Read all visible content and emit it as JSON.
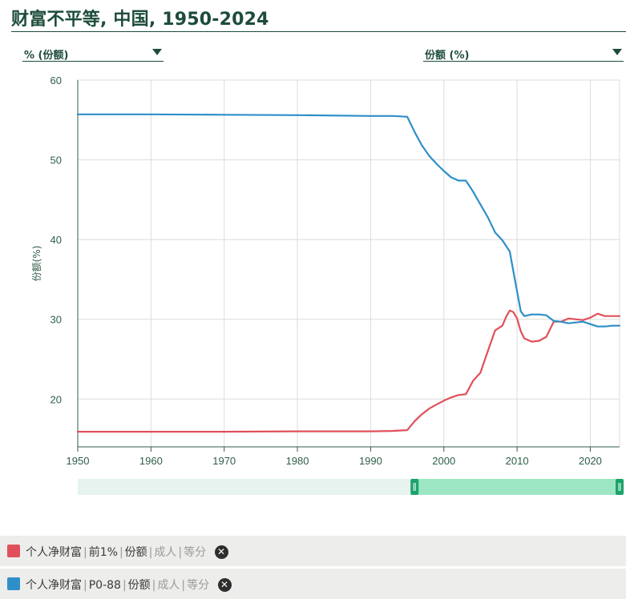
{
  "header": {
    "title": "财富不平等, 中国, 1950-2024"
  },
  "controls": {
    "unit_dropdown": "% (份额)",
    "metric_dropdown": "份额 (%)"
  },
  "chart_data": {
    "type": "line",
    "ylabel": "份额(%)",
    "xlim": [
      1950,
      2024
    ],
    "ylim": [
      14,
      60
    ],
    "yticks": [
      20,
      30,
      40,
      50,
      60
    ],
    "xticks": [
      1950,
      1960,
      1970,
      1980,
      1990,
      2000,
      2010,
      2020
    ],
    "grid": true,
    "series": [
      {
        "name": "个人净财富 | 前1% | 份额 | 成人 | 等分",
        "color": "#e0505a",
        "x": [
          1950,
          1960,
          1970,
          1980,
          1990,
          1993,
          1995,
          1996,
          1997,
          1998,
          1999,
          2000,
          2001,
          2002,
          2003,
          2004,
          2005,
          2006,
          2007,
          2008,
          2008.5,
          2009,
          2009.5,
          2010,
          2010.5,
          2011,
          2012,
          2013,
          2014,
          2015,
          2016,
          2017,
          2018,
          2019,
          2020,
          2021,
          2022,
          2023,
          2024
        ],
        "y": [
          15.9,
          15.9,
          15.9,
          15.95,
          15.95,
          16.0,
          16.1,
          17.2,
          18.1,
          18.8,
          19.3,
          19.8,
          20.2,
          20.5,
          20.6,
          22.3,
          23.3,
          26.0,
          28.6,
          29.2,
          30.3,
          31.1,
          30.9,
          30.1,
          28.5,
          27.6,
          27.2,
          27.3,
          27.8,
          29.7,
          29.7,
          30.1,
          30.0,
          29.9,
          30.2,
          30.7,
          30.4,
          30.4,
          30.4
        ]
      },
      {
        "name": "个人净财富 | P0-88 | 份额 | 成人 | 等分",
        "color": "#2e8fc9",
        "x": [
          1950,
          1960,
          1970,
          1980,
          1990,
          1993,
          1995,
          1996,
          1997,
          1998,
          1999,
          2000,
          2001,
          2002,
          2003,
          2004,
          2005,
          2006,
          2007,
          2008,
          2009,
          2009.5,
          2010,
          2010.5,
          2011,
          2012,
          2013,
          2014,
          2015,
          2016,
          2017,
          2018,
          2019,
          2020,
          2021,
          2022,
          2023,
          2024
        ],
        "y": [
          55.7,
          55.7,
          55.65,
          55.6,
          55.5,
          55.5,
          55.4,
          53.5,
          51.8,
          50.5,
          49.5,
          48.6,
          47.8,
          47.4,
          47.4,
          46.0,
          44.4,
          42.8,
          40.9,
          39.9,
          38.5,
          36.0,
          33.5,
          31.0,
          30.4,
          30.6,
          30.6,
          30.5,
          29.8,
          29.7,
          29.5,
          29.6,
          29.7,
          29.4,
          29.1,
          29.1,
          29.2,
          29.2
        ]
      }
    ]
  },
  "range_selector": {
    "from": 1950,
    "selected_from": 1996,
    "selected_to": 2024
  },
  "legend": [
    {
      "metric": "个人净财富",
      "group": "前1%",
      "measure": "份额",
      "population": "成人",
      "split": "等分",
      "color": "#e0505a",
      "close_icon": "close-circle-icon"
    },
    {
      "metric": "个人净财富",
      "group": "P0-88",
      "measure": "份额",
      "population": "成人",
      "split": "等分",
      "color": "#2e8fc9",
      "close_icon": "close-circle-icon"
    }
  ]
}
